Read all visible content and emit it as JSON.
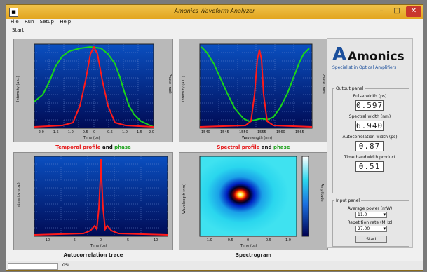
{
  "window": {
    "title": "Amonics Waveform Analyzer",
    "icon": "app-icon",
    "minimize": "–",
    "maximize": "□",
    "close": "✕"
  },
  "menu": [
    "File",
    "Run",
    "Setup",
    "Help"
  ],
  "toolbar": {
    "start_label": "Start"
  },
  "plots": {
    "temporal": {
      "caption_a": "Temporal profile",
      "caption_and": "and",
      "caption_b": "phase",
      "xlabel": "Time (ps)",
      "ylabel": "Intensity (a.u.)",
      "y2label": "Phase (rad)",
      "xticks": [
        "-2.0",
        "-1.5",
        "-1.0",
        "-0.5",
        "0",
        "0.5",
        "1.0",
        "1.5",
        "2.0"
      ],
      "yticks": [
        "1",
        "0.9",
        "0.8",
        "0.7",
        "0.6",
        "0.5",
        "0.4",
        "0.3",
        "0.2",
        "0.1",
        "0"
      ]
    },
    "spectral": {
      "caption_a": "Spectral profile",
      "caption_and": "and",
      "caption_b": "phase",
      "xlabel": "Wavelength (nm)",
      "ylabel": "Intensity (a.u.)",
      "y2label": "Phase (rad)",
      "xticks": [
        "1540",
        "1545",
        "1550",
        "1555",
        "1560",
        "1565"
      ],
      "yticks": [
        "1.00",
        "0.90",
        "0.80",
        "0.70",
        "0.60",
        "0.50",
        "0.40",
        "0.30",
        "0.20",
        "0.10",
        "0"
      ]
    },
    "autocorr": {
      "caption": "Autocorrelation trace",
      "xlabel": "Time (ps)",
      "ylabel": "Intensity (a.u.)",
      "xticks": [
        "-10",
        "-5",
        "0",
        "5",
        "10"
      ],
      "yticks": [
        "1.00",
        "0.90",
        "0.80",
        "0.70",
        "0.60",
        "0.50",
        "0.40",
        "0.30",
        "0.20",
        "0.10",
        "0"
      ]
    },
    "spectrogram": {
      "caption": "Spectrogram",
      "xlabel": "Time (ps)",
      "ylabel": "Wavelength (nm)",
      "colorbar_label": "Amplitude",
      "xticks": [
        "-1.0",
        "-0.5",
        "0",
        "0.5",
        "1.0"
      ],
      "yticks": [
        "1565",
        "1560",
        "1555",
        "1550",
        "1545",
        "1540"
      ]
    }
  },
  "logo": {
    "brand": "Amonics",
    "tagline": "Specialist in Optical Amplifiers"
  },
  "output_panel": {
    "title": "Output panel",
    "pulse_width_label": "Pulse width (ps)",
    "pulse_width_value": "0.597",
    "spectral_width_label": "Spectral width (nm)",
    "spectral_width_value": "6.940",
    "autocorr_label": "Autocorrelation width (ps)",
    "autocorr_value": "0.87",
    "tbp_label": "Time bandwidth product",
    "tbp_value": "0.51"
  },
  "input_panel": {
    "title": "Input panel",
    "avg_power_label": "Average power (mW)",
    "avg_power_value": "11.0",
    "rep_rate_label": "Repetition rate (MHz)",
    "rep_rate_value": "27.00",
    "start_label": "Start"
  },
  "status": {
    "text": "0%"
  },
  "colors": {
    "red_trace": "#ff1a1a",
    "green_trace": "#19d619",
    "plot_bg": "#002a8f"
  }
}
